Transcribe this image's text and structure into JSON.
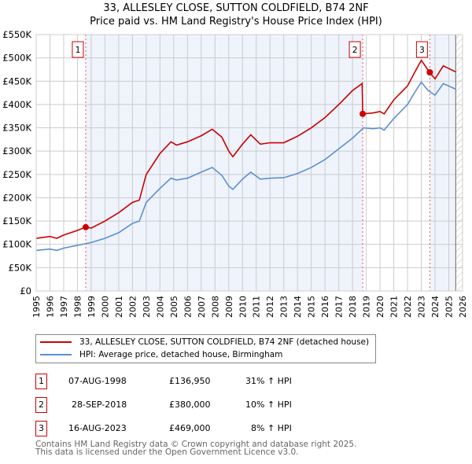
{
  "chart_data": {
    "type": "line",
    "title": "33, ALLESLEY CLOSE, SUTTON COLDFIELD, B74 2NF",
    "subtitle": "Price paid vs. HM Land Registry's House Price Index (HPI)",
    "xlim": [
      1995,
      2026
    ],
    "ylim": [
      0,
      550000
    ],
    "x_ticks": [
      "1995",
      "1996",
      "1997",
      "1998",
      "1999",
      "2000",
      "2001",
      "2002",
      "2003",
      "2004",
      "2005",
      "2006",
      "2007",
      "2008",
      "2009",
      "2010",
      "2011",
      "2012",
      "2013",
      "2014",
      "2015",
      "2016",
      "2017",
      "2018",
      "2019",
      "2020",
      "2021",
      "2022",
      "2023",
      "2024",
      "2025",
      "2026"
    ],
    "y_ticks": [
      {
        "v": 0,
        "l": "£0"
      },
      {
        "v": 50000,
        "l": "£50K"
      },
      {
        "v": 100000,
        "l": "£100K"
      },
      {
        "v": 150000,
        "l": "£150K"
      },
      {
        "v": 200000,
        "l": "£200K"
      },
      {
        "v": 250000,
        "l": "£250K"
      },
      {
        "v": 300000,
        "l": "£300K"
      },
      {
        "v": 350000,
        "l": "£350K"
      },
      {
        "v": 400000,
        "l": "£400K"
      },
      {
        "v": 450000,
        "l": "£450K"
      },
      {
        "v": 500000,
        "l": "£500K"
      },
      {
        "v": 550000,
        "l": "£550K"
      }
    ],
    "grid": true,
    "series": [
      {
        "name": "33, ALLESLEY CLOSE, SUTTON COLDFIELD, B74 2NF (detached house)",
        "color": "#cc0000",
        "x": [
          1995,
          1996,
          1996.5,
          1997,
          1998,
          1998.6,
          1999,
          2000,
          2001,
          2002,
          2002.5,
          2003,
          2004,
          2004.8,
          2005.2,
          2006,
          2007,
          2007.8,
          2008.5,
          2009,
          2009.3,
          2010,
          2010.6,
          2011.3,
          2012,
          2013,
          2014,
          2015,
          2016,
          2017,
          2018,
          2018.7,
          2018.74,
          2019.5,
          2020,
          2020.3,
          2021,
          2022,
          2022.5,
          2023,
          2023.6,
          2024,
          2024.6,
          2025.5
        ],
        "y": [
          113000,
          117000,
          113000,
          120000,
          130000,
          137000,
          135000,
          150000,
          168000,
          190000,
          195000,
          250000,
          295000,
          320000,
          313000,
          320000,
          333000,
          347000,
          330000,
          300000,
          288000,
          315000,
          335000,
          315000,
          318000,
          318000,
          332000,
          350000,
          372000,
          400000,
          430000,
          445000,
          380000,
          382000,
          385000,
          380000,
          410000,
          440000,
          468000,
          495000,
          469000,
          455000,
          483000,
          470000
        ]
      },
      {
        "name": "HPI: Average price, detached house, Birmingham",
        "color": "#5b8fd4",
        "x": [
          1995,
          1996,
          1996.5,
          1997,
          1998,
          1999,
          2000,
          2001,
          2002,
          2002.5,
          2003,
          2004,
          2004.8,
          2005.2,
          2006,
          2007,
          2007.8,
          2008.5,
          2009,
          2009.3,
          2010,
          2010.6,
          2011.3,
          2012,
          2013,
          2014,
          2015,
          2016,
          2017,
          2018,
          2018.8,
          2019.5,
          2020,
          2020.3,
          2021,
          2022,
          2022.5,
          2023,
          2023.5,
          2024,
          2024.6,
          2025.5
        ],
        "y": [
          87000,
          90000,
          87000,
          92000,
          98000,
          104000,
          113000,
          125000,
          145000,
          150000,
          190000,
          220000,
          242000,
          238000,
          242000,
          255000,
          265000,
          248000,
          225000,
          218000,
          240000,
          255000,
          240000,
          242000,
          243000,
          252000,
          265000,
          282000,
          305000,
          328000,
          350000,
          348000,
          350000,
          345000,
          370000,
          400000,
          425000,
          448000,
          430000,
          420000,
          445000,
          433000
        ]
      }
    ],
    "sales": [
      {
        "n": "1",
        "x": 1998.6,
        "y": 136950,
        "date": "07-AUG-1998",
        "price": "£136,950",
        "hpi": "31% ↑ HPI"
      },
      {
        "n": "2",
        "x": 2018.74,
        "y": 380000,
        "date": "28-SEP-2018",
        "price": "£380,000",
        "hpi": "10% ↑ HPI"
      },
      {
        "n": "3",
        "x": 2023.62,
        "y": 469000,
        "date": "16-AUG-2023",
        "price": "£469,000",
        "hpi": "8% ↑ HPI"
      }
    ],
    "data_end": 2025.5
  },
  "footer": {
    "line1": "Contains HM Land Registry data © Crown copyright and database right 2025.",
    "line2": "This data is licensed under the Open Government Licence v3.0."
  }
}
